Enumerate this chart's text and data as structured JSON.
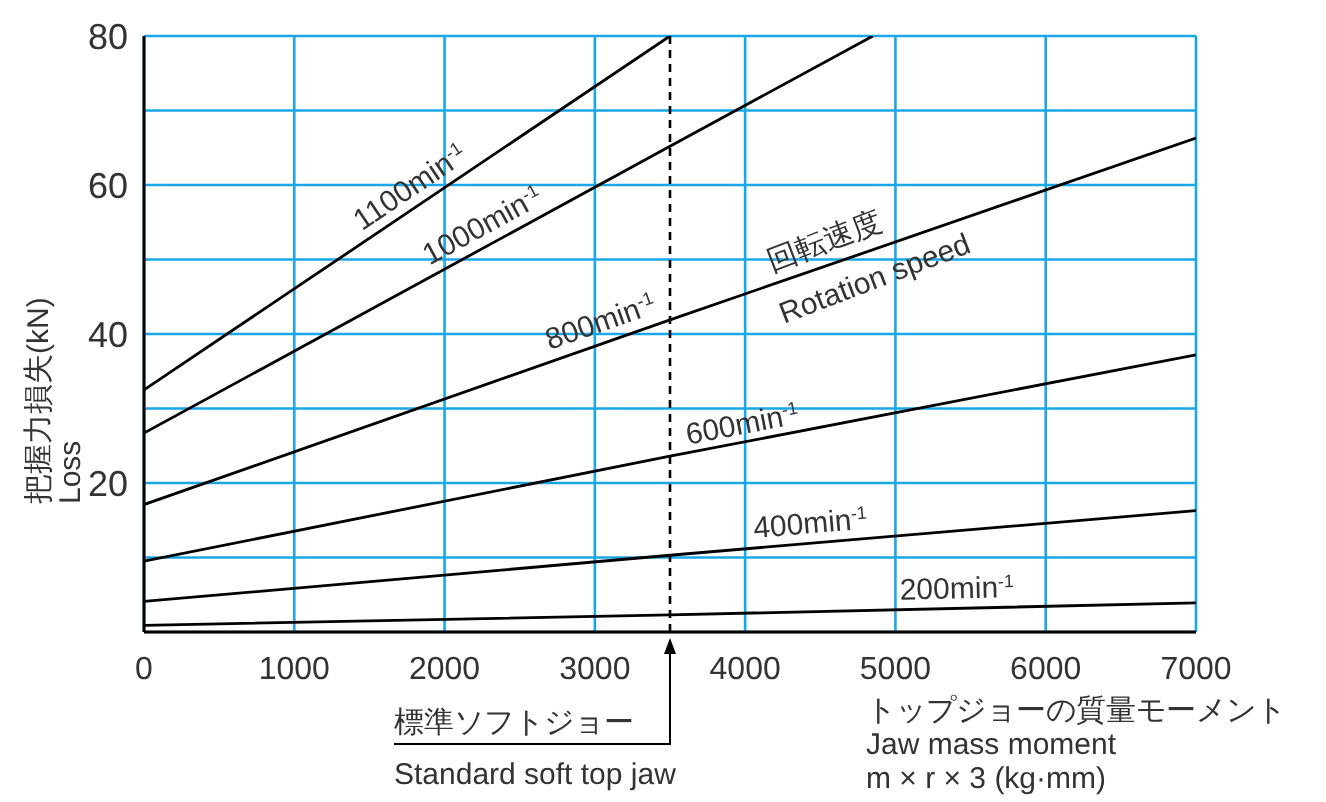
{
  "chart_data": {
    "type": "line",
    "ylabel": "把握力損失(kN)\nLoss",
    "xlabel": "トップジョーの質量モーメント\nJaw mass moment\nm × r × 3 (kg·mm)",
    "xlim": [
      0,
      7000
    ],
    "xticks": [
      0,
      1000,
      2000,
      3000,
      4000,
      5000,
      6000,
      7000
    ],
    "ylim": [
      0,
      80
    ],
    "yticks": [
      {
        "value": 0,
        "label": null
      },
      {
        "value": 10,
        "label": null
      },
      20,
      {
        "value": 30,
        "label": null
      },
      40,
      {
        "value": 50,
        "label": null
      },
      60,
      {
        "value": 70,
        "label": null
      },
      80
    ],
    "grid": true,
    "tick_labels": true,
    "series": [
      {
        "name": "1100min$^{-1}$",
        "color": "#000000",
        "x": [
          0,
          3500
        ],
        "values": [
          32.5,
          80
        ]
      },
      {
        "name": "1000min$^{-1}$",
        "color": "#000000",
        "x": [
          0,
          3500,
          4850
        ],
        "values": [
          26.7,
          65.2,
          80
        ]
      },
      {
        "name": "800min$^{-1}$",
        "color": "#000000",
        "x": [
          0,
          3500,
          7000
        ],
        "values": [
          17.1,
          41.9,
          66.3
        ]
      },
      {
        "name": "600min$^{-1}$",
        "color": "#000000",
        "x": [
          0,
          3500,
          7000
        ],
        "values": [
          9.5,
          23.6,
          37.2
        ]
      },
      {
        "name": "400min$^{-1}$",
        "color": "#000000",
        "x": [
          0,
          3500,
          7000
        ],
        "values": [
          4.1,
          10.3,
          16.3
        ]
      },
      {
        "name": "200min$^{-1}$",
        "color": "#000000",
        "x": [
          0,
          3500,
          7000
        ],
        "values": [
          0.9,
          2.3,
          3.9
        ]
      }
    ],
    "ref_lines": [
      {
        "axis": "x",
        "value": 3500,
        "label": "標準ソフトジョー\nStandard soft top jaw",
        "color": "#000000",
        "line_style": "dashed"
      }
    ],
    "annotations": [
      "回転速度",
      "Rotation speed"
    ]
  }
}
